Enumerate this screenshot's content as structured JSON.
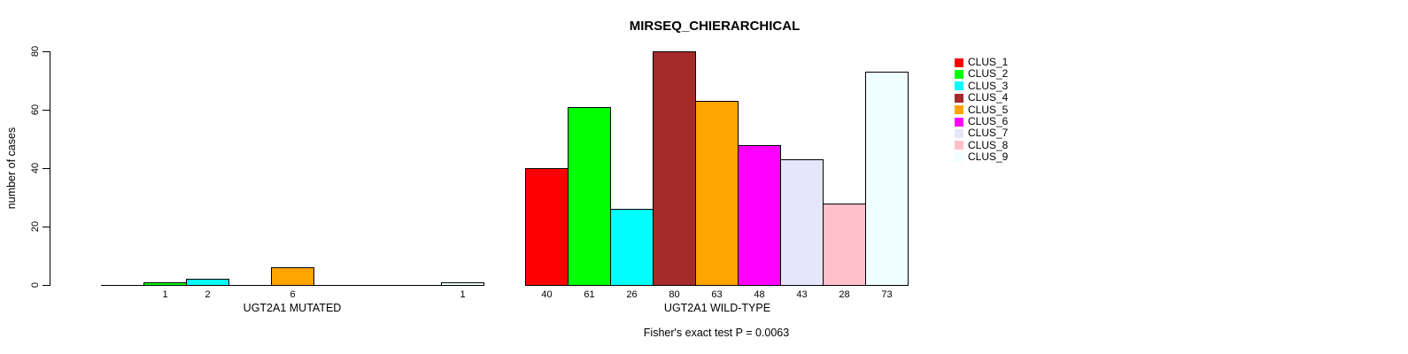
{
  "chart_data": {
    "type": "bar",
    "title": "MIRSEQ_CHIERARCHICAL",
    "ylabel": "number of cases",
    "xlabel": "",
    "ylim": [
      0,
      80
    ],
    "yticks": [
      0,
      20,
      40,
      60,
      80
    ],
    "grid": false,
    "legend_position": "right",
    "categories": [
      "CLUS_1",
      "CLUS_2",
      "CLUS_3",
      "CLUS_4",
      "CLUS_5",
      "CLUS_6",
      "CLUS_7",
      "CLUS_8",
      "CLUS_9"
    ],
    "palette": [
      "#FF0000",
      "#00FF00",
      "#00FFFF",
      "#A52A2A",
      "#FFA500",
      "#FF00FF",
      "#E6E6FA",
      "#FFC0CB",
      "#F0FFFF"
    ],
    "bar_border_color": "#000000",
    "groups": [
      {
        "label": "UGT2A1 MUTATED",
        "values": [
          0,
          1,
          2,
          0,
          6,
          0,
          0,
          0,
          1
        ]
      },
      {
        "label": "UGT2A1 WILD-TYPE",
        "values": [
          40,
          61,
          26,
          80,
          63,
          48,
          43,
          28,
          73
        ]
      }
    ],
    "footnote": "Fisher's exact test P = 0.0063"
  }
}
